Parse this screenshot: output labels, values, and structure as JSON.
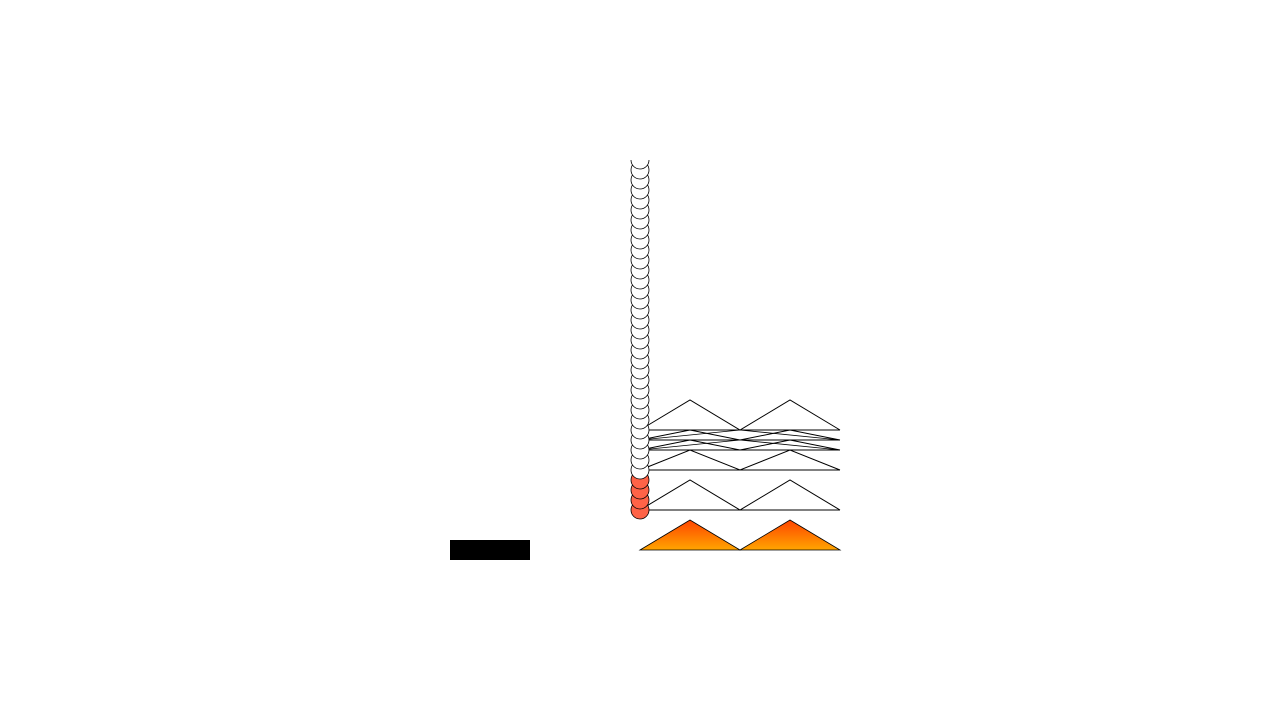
{
  "colors": {
    "background": "#ffffff",
    "outline": "#000000",
    "bead_white": "#ffffff",
    "bead_red": "#ff6347",
    "flame_top": "#ff4500",
    "flame_bottom": "#ffa500",
    "block": "#000000"
  },
  "beads": {
    "white_count": 32,
    "red_count": 4
  },
  "outline_peak_rows": 6,
  "flame_peaks": 2
}
